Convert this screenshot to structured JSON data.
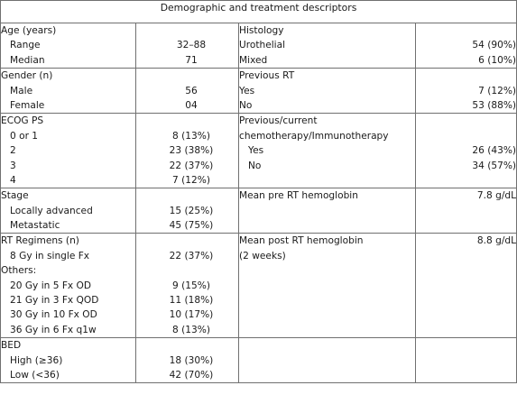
{
  "title": "Demographic and treatment descriptors",
  "rows": [
    {
      "left": {
        "lines": [
          "Age (years)",
          "Range",
          "Median"
        ],
        "values": [
          "",
          "32–88",
          "71"
        ]
      },
      "right": {
        "lines": [
          "Histology",
          "Urothelial",
          "Mixed"
        ],
        "values": [
          "",
          "54 (90%)",
          "6 (10%)"
        ]
      }
    },
    {
      "left": {
        "lines": [
          "Gender (n)",
          "Male",
          "Female"
        ],
        "values": [
          "",
          "56",
          "04"
        ]
      },
      "right": {
        "lines": [
          "Previous RT",
          "Yes",
          "No"
        ],
        "values": [
          "",
          "7 (12%)",
          "53 (88%)"
        ]
      }
    },
    {
      "left": {
        "lines": [
          "ECOG PS",
          "0 or 1",
          "2",
          "3",
          "4"
        ],
        "values": [
          "",
          "8 (13%)",
          "23 (38%)",
          "22 (37%)",
          "7 (12%)"
        ]
      },
      "right": {
        "lines": [
          "Previous/current",
          "chemotherapy/Immunotherapy",
          "Yes",
          "No"
        ],
        "values": [
          "",
          "",
          "26 (43%)",
          "34 (57%)"
        ]
      }
    },
    {
      "left": {
        "lines": [
          "Stage",
          "Locally advanced",
          "Metastatic"
        ],
        "values": [
          "",
          "15 (25%)",
          "45 (75%)"
        ]
      },
      "right": {
        "lines": [
          "Mean pre RT hemoglobin"
        ],
        "values": [
          "7.8 g/dL"
        ]
      }
    },
    {
      "left": {
        "lines": [
          "RT Regimens (n)",
          "8 Gy in single Fx",
          "Others:",
          "20 Gy in 5 Fx OD",
          "21 Gy in 3 Fx QOD",
          "30 Gy in 10 Fx OD",
          "36 Gy in 6 Fx q1w"
        ],
        "values": [
          "",
          "22 (37%)",
          "",
          "9 (15%)",
          "11 (18%)",
          "10 (17%)",
          "8 (13%)"
        ]
      },
      "right": {
        "lines": [
          "Mean post RT hemoglobin",
          "(2 weeks)"
        ],
        "values": [
          "8.8 g/dL",
          ""
        ]
      }
    },
    {
      "left": {
        "lines": [
          "BED",
          "High (≥36)",
          "Low (<36)"
        ],
        "values": [
          "",
          "18 (30%)",
          "42 (70%)"
        ]
      },
      "right": {
        "lines": [],
        "values": []
      }
    }
  ]
}
